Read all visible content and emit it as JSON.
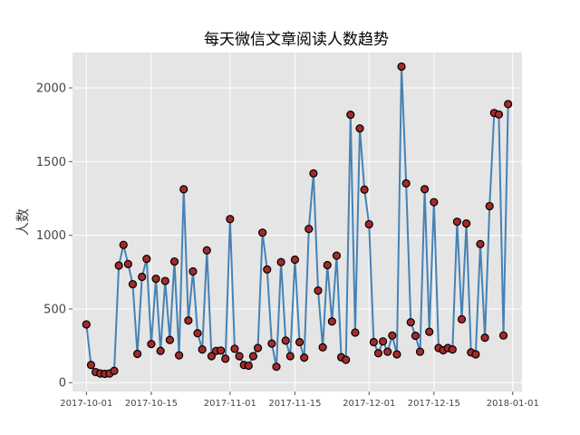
{
  "chart_data": {
    "type": "line",
    "title": "每天微信文章阅读人数趋势",
    "xlabel": "",
    "ylabel": "人数",
    "x_start": "2017-10-01",
    "x_end": "2017-12-31",
    "xlim": [
      "2017-09-28",
      "2018-01-03"
    ],
    "ylim": [
      -60,
      2240
    ],
    "grid": true,
    "x_ticks": [
      "2017-10-01",
      "2017-10-15",
      "2017-11-01",
      "2017-11-15",
      "2017-12-01",
      "2017-12-15",
      "2018-01-01"
    ],
    "y_ticks": [
      0,
      500,
      1000,
      1500,
      2000
    ],
    "y_tick_labels": [
      "0",
      "500",
      "1000",
      "1500",
      "2000"
    ],
    "values": [
      395,
      120,
      72,
      62,
      60,
      62,
      80,
      795,
      935,
      805,
      668,
      195,
      718,
      840,
      262,
      705,
      215,
      690,
      290,
      822,
      185,
      1312,
      422,
      755,
      335,
      225,
      898,
      180,
      215,
      218,
      162,
      1110,
      230,
      180,
      120,
      115,
      180,
      235,
      1018,
      768,
      265,
      108,
      818,
      285,
      180,
      835,
      275,
      170,
      1043,
      1420,
      625,
      240,
      798,
      415,
      862,
      172,
      155,
      1818,
      340,
      1725,
      1310,
      1075,
      275,
      200,
      280,
      210,
      320,
      192,
      2145,
      1352,
      410,
      318,
      210,
      1313,
      345,
      1225,
      235,
      220,
      235,
      225,
      1092,
      430,
      1080,
      205,
      192,
      940,
      305,
      1198,
      1830,
      1820,
      320,
      1890
    ],
    "line_color": "#4682b4",
    "marker_face": "#a52a2a",
    "marker_edge": "#000000",
    "plot_background": "#e5e5e5",
    "grid_color": "#ffffff"
  }
}
